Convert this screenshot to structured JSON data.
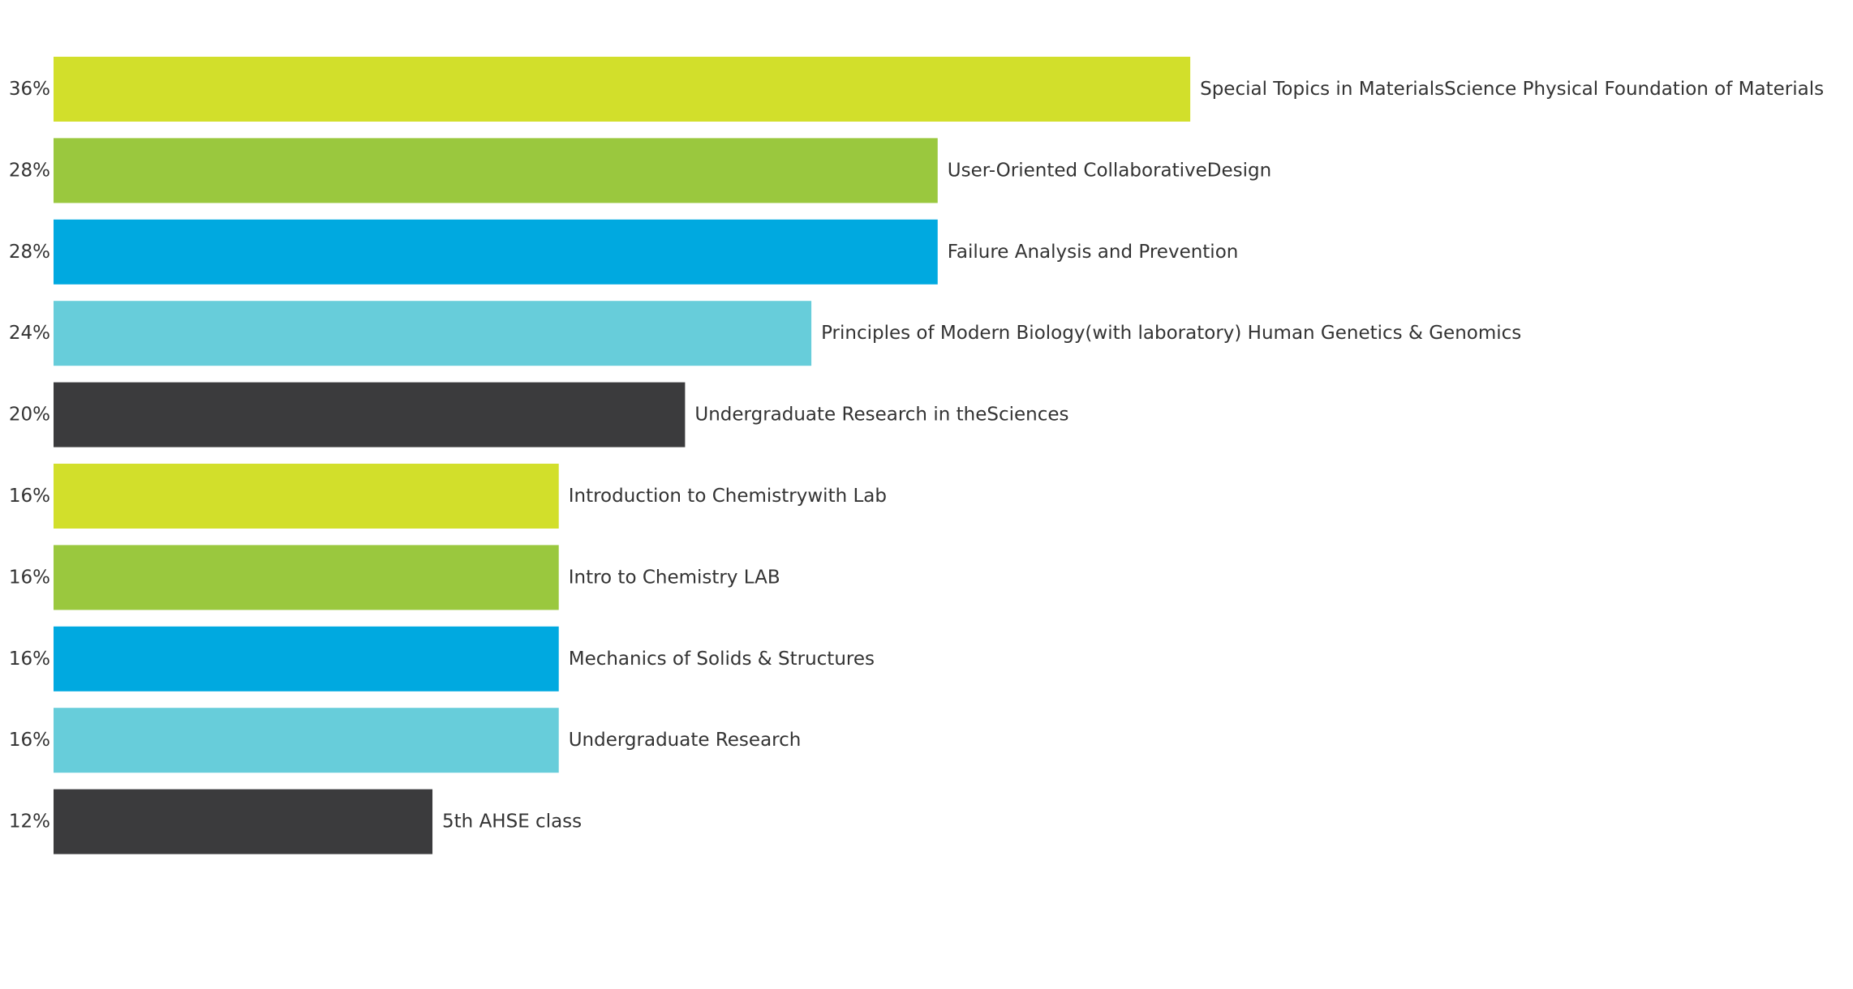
{
  "chart_data": {
    "type": "bar",
    "orientation": "horizontal",
    "grid": false,
    "xlim": [
      0,
      36
    ],
    "value_format": "percent",
    "categories": [
      "Special Topics in MaterialsScience Physical Foundation of Materials",
      "User-Oriented CollaborativeDesign",
      "Failure Analysis and Prevention",
      "Principles of Modern Biology(with laboratory) Human Genetics & Genomics",
      "Undergraduate Research in theSciences",
      "Introduction to Chemistrywith Lab",
      "Intro to Chemistry LAB",
      "Mechanics of Solids & Structures",
      "Undergraduate Research",
      "5th AHSE class"
    ],
    "values": [
      36,
      28,
      28,
      24,
      20,
      16,
      16,
      16,
      16,
      12
    ],
    "value_labels": [
      "36%",
      "28%",
      "28%",
      "24%",
      "20%",
      "16%",
      "16%",
      "16%",
      "16%",
      "12%"
    ],
    "colors": [
      "#d2df2b",
      "#9ac83e",
      "#00a9e0",
      "#67cdda",
      "#3b3b3d",
      "#d2df2b",
      "#9ac83e",
      "#00a9e0",
      "#67cdda",
      "#3b3b3d"
    ]
  }
}
